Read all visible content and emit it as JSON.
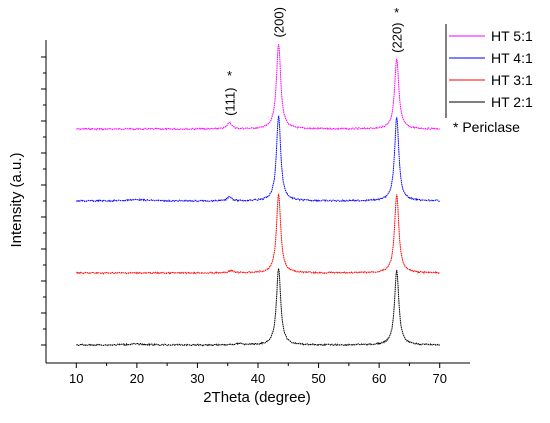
{
  "chart_data": {
    "type": "line",
    "xlabel": "2Theta (degree)",
    "ylabel": "Intensity (a.u.)",
    "xlim": [
      5,
      75
    ],
    "xticks": [
      10,
      20,
      30,
      40,
      50,
      60,
      70
    ],
    "y_tick_labels": false,
    "grid": false,
    "legend_position": "top-right",
    "series": [
      {
        "name": "HT 5:1",
        "color": "#ff00ff",
        "offset": 3.0,
        "scale": 0.72,
        "peaks": [
          {
            "x": 35.3,
            "h": 0.08,
            "w": 0.8
          },
          {
            "x": 43.4,
            "h": 1.0,
            "w": 0.85
          },
          {
            "x": 62.9,
            "h": 0.82,
            "w": 0.85
          }
        ]
      },
      {
        "name": "HT 4:1",
        "color": "#0000ff",
        "offset": 2.0,
        "scale": 0.72,
        "peaks": [
          {
            "x": 20.0,
            "h": 0.015,
            "w": 4.0
          },
          {
            "x": 35.3,
            "h": 0.05,
            "w": 0.8
          },
          {
            "x": 43.4,
            "h": 1.0,
            "w": 0.85
          },
          {
            "x": 62.9,
            "h": 0.98,
            "w": 0.85
          }
        ]
      },
      {
        "name": "HT 3:1",
        "color": "#ff0000",
        "offset": 1.0,
        "scale": 0.72,
        "peaks": [
          {
            "x": 35.5,
            "h": 0.025,
            "w": 0.9
          },
          {
            "x": 43.4,
            "h": 0.92,
            "w": 0.85
          },
          {
            "x": 62.9,
            "h": 0.92,
            "w": 0.85
          }
        ]
      },
      {
        "name": "HT 2:1",
        "color": "#000000",
        "offset": 0.0,
        "scale": 0.72,
        "peaks": [
          {
            "x": 20.0,
            "h": 0.01,
            "w": 4.0
          },
          {
            "x": 37.0,
            "h": 0.02,
            "w": 1.0
          },
          {
            "x": 43.4,
            "h": 0.9,
            "w": 0.85
          },
          {
            "x": 62.9,
            "h": 0.88,
            "w": 0.85
          }
        ]
      }
    ],
    "annotations": [
      {
        "text": "(111)",
        "x": 35.3,
        "marker": "*"
      },
      {
        "text": "(200)",
        "x": 43.4,
        "marker": "*"
      },
      {
        "text": "(220)",
        "x": 62.9,
        "marker": "*"
      }
    ],
    "legend_note": "* Periclase"
  }
}
